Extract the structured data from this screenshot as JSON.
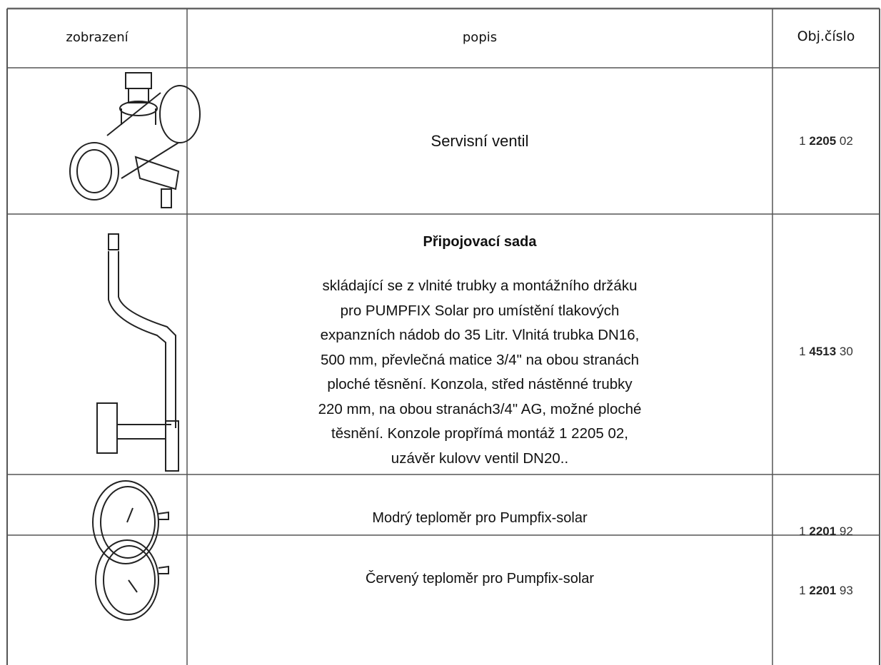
{
  "table": {
    "header": [
      "zobrazení",
      "popis",
      "Obj.číslo"
    ],
    "rows": [
      {
        "description": "Servisní ventil",
        "order_number": [
          "1",
          "2205",
          "02"
        ]
      },
      {
        "title": "Připojovací sada",
        "description_lines": [
          "skládající se z vlnité trubky a montážního držáku",
          "pro PUMPFIX Solar pro umístění tlakových",
          "expanzních nádob do 35 Litr. Vlnitá trubka DN16,",
          "500 mm, převlečná matice 3/4\" na obou stranách",
          "ploché těsnění. Konzola, střed nástěnné trubky",
          "220 mm, na obou stranách3/4\" AG, možné ploché",
          "těsnění. Konzole propřímá montáž 1 2205 02,",
          "uzávěr kulovv ventil DN20.."
        ],
        "order_number": [
          "1",
          "4513",
          "30"
        ]
      },
      {
        "description": "Modrý teploměr pro Pumpfix-solar",
        "order_number": [
          "1",
          "2201",
          "92"
        ]
      },
      {
        "description": "Červený teploměr pro Pumpfix-solar",
        "order_number": [
          "1",
          "2201",
          "93"
        ]
      }
    ]
  }
}
